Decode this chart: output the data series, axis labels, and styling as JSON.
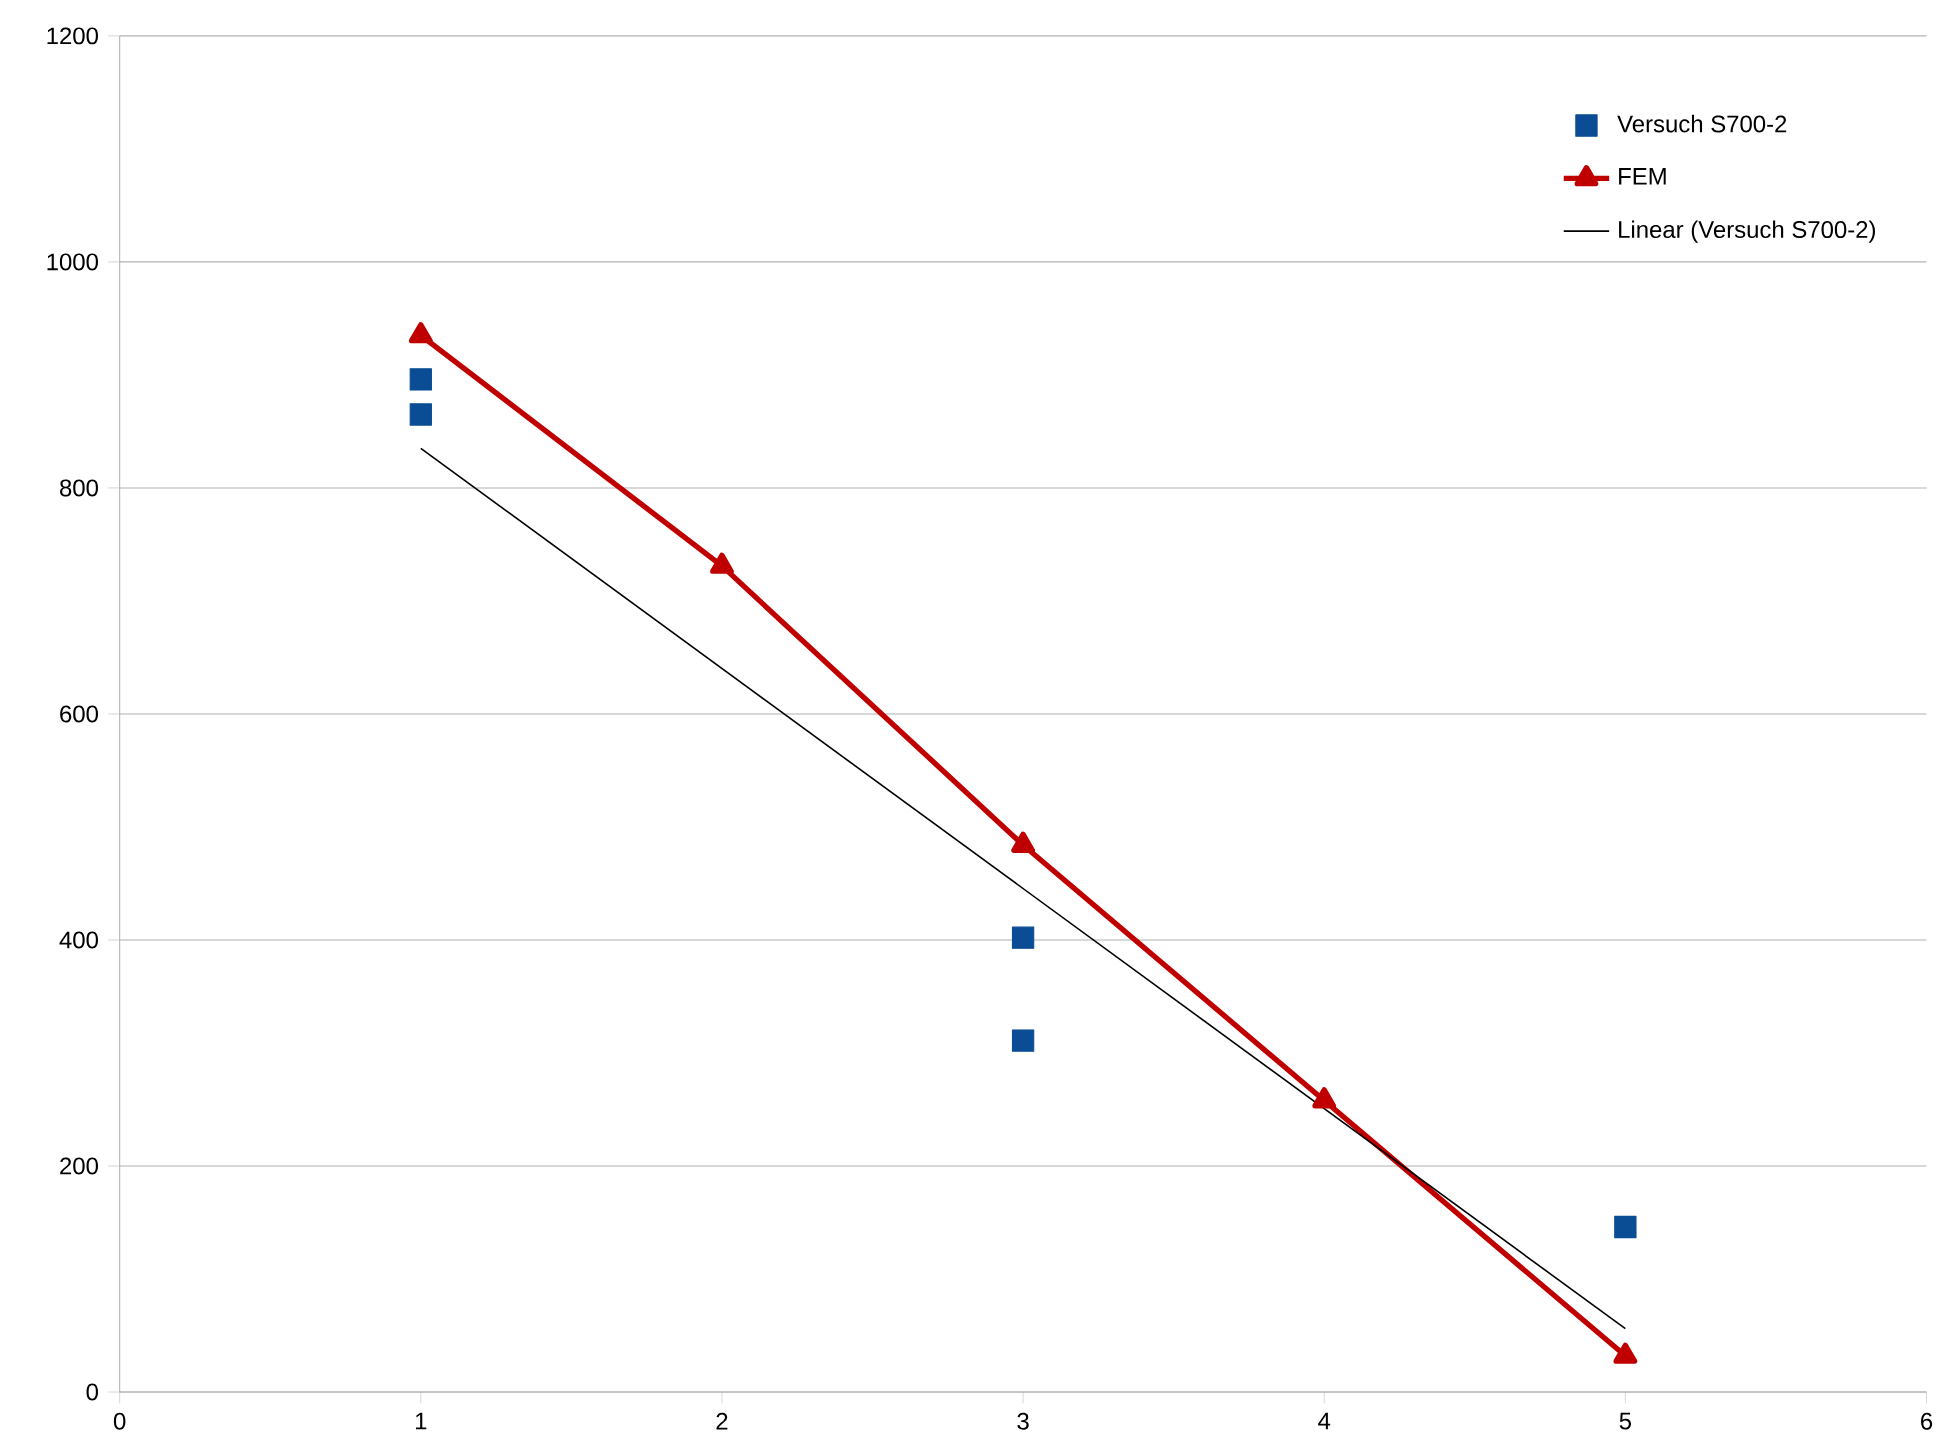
{
  "chart_data": {
    "type": "scatter",
    "series": [
      {
        "name": "Versuch S700-2",
        "marker": "square",
        "color": "#0b4d94",
        "x": [
          1,
          1,
          3,
          3,
          5
        ],
        "values": [
          896,
          865,
          402,
          311,
          146
        ]
      },
      {
        "name": "FEM",
        "type": "line",
        "marker": "triangle",
        "color": "#c00000",
        "x": [
          1,
          2,
          3,
          4,
          5
        ],
        "values": [
          935,
          731,
          484,
          258,
          32
        ]
      },
      {
        "name": "Linear (Versuch S700-2)",
        "type": "line",
        "marker": "none",
        "color": "#000000",
        "x": [
          1,
          5
        ],
        "values": [
          835,
          56
        ]
      }
    ],
    "xlim": [
      0,
      6
    ],
    "xticks": [
      0,
      1,
      2,
      3,
      4,
      5,
      6
    ],
    "ylim": [
      0,
      1200
    ],
    "yticks": [
      0,
      200,
      400,
      600,
      800,
      1000,
      1200
    ],
    "grid": "y",
    "legend": "top right"
  }
}
